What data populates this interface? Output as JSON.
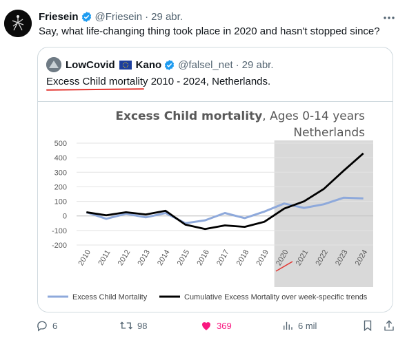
{
  "tweet": {
    "author_name": "Friesein",
    "handle": "@Friesein",
    "separator": "·",
    "date": "29 abr.",
    "text": "Say, what life-changing thing took place in 2020 and hasn't stopped since?",
    "more_icon": "more-horizontal-icon"
  },
  "quote": {
    "author_name": "LowCovid",
    "author_suffix": "Kano",
    "handle": "@falsel_net",
    "separator": "·",
    "date": "29 abr.",
    "text_underlined": "Excess Child mortality",
    "text_rest": " 2010 - 2024, Netherlands."
  },
  "chart_data": {
    "type": "line",
    "title_bold": "Excess Child mortality",
    "title_rest": ", Ages 0-14 years",
    "subtitle": "Netherlands",
    "x": [
      "2010",
      "2011",
      "2012",
      "2013",
      "2014",
      "2015",
      "2016",
      "2017",
      "2018",
      "2019",
      "2020",
      "2021",
      "2022",
      "2023",
      "2024"
    ],
    "ylim": [
      -200,
      500
    ],
    "yticks": [
      "500",
      "400",
      "300",
      "200",
      "100",
      "0",
      "-100",
      "-200"
    ],
    "highlight_range": [
      "2019.5",
      "2024.5"
    ],
    "series": [
      {
        "name": "Excess Child Mortality",
        "color": "#8ea9db",
        "values": [
          25,
          -20,
          15,
          -10,
          20,
          -50,
          -30,
          20,
          -15,
          30,
          85,
          55,
          80,
          125,
          120
        ]
      },
      {
        "name": "Cumulative Excess Mortality over week-specific trends",
        "color": "#000000",
        "values": [
          25,
          5,
          25,
          10,
          35,
          -60,
          -90,
          -65,
          -75,
          -40,
          50,
          100,
          185,
          310,
          430
        ]
      }
    ],
    "legend_position": "bottom"
  },
  "actions": {
    "replies": "6",
    "retweets": "98",
    "likes": "369",
    "views": "6 mil"
  },
  "colors": {
    "verified": "#1d9bf0",
    "like": "#f91880",
    "muted": "#536471",
    "highlight_band": "#d9d9d9",
    "annotation_red": "#e3342f"
  }
}
